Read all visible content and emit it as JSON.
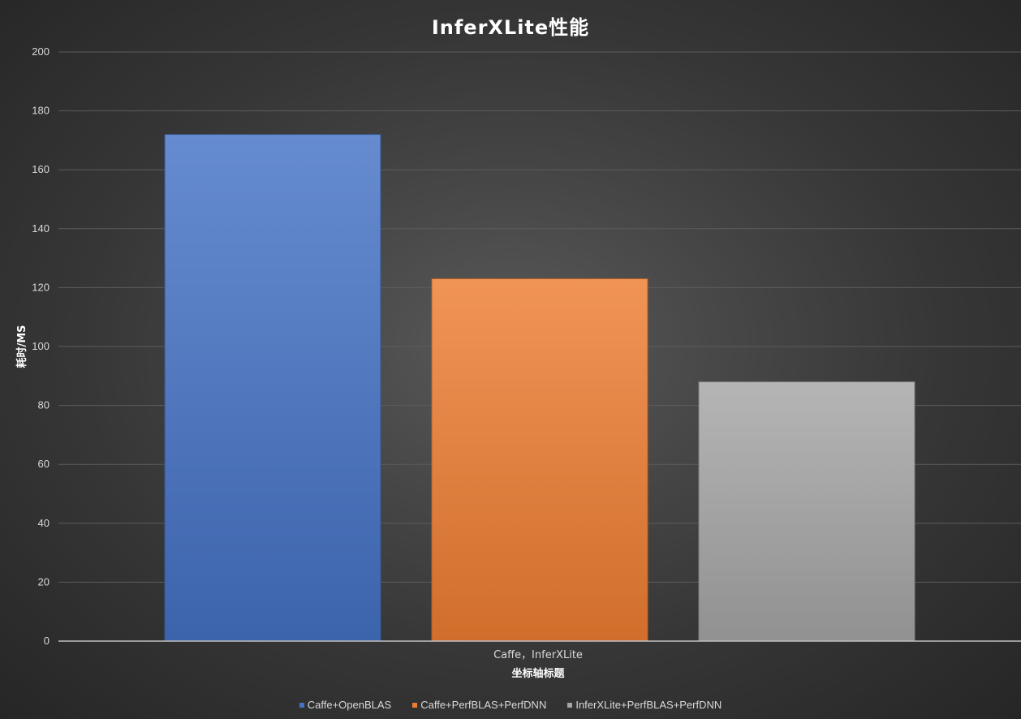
{
  "chart_data": {
    "type": "bar",
    "title": "InferXLite性能",
    "xlabel": "坐标轴标题",
    "ylabel": "耗时/MS",
    "categories": [
      "Caffe，InferXLite"
    ],
    "series": [
      {
        "name": "Caffe+OpenBLAS",
        "values": [
          172
        ],
        "color": "#4472c4"
      },
      {
        "name": "Caffe+PerfBLAS+PerfDNN",
        "values": [
          123
        ],
        "color": "#ed7d31"
      },
      {
        "name": "InferXLite+PerfBLAS+PerfDNN",
        "values": [
          88
        ],
        "color": "#a5a5a5"
      }
    ],
    "ylim": [
      0,
      200
    ],
    "yticks": [
      0,
      20,
      40,
      60,
      80,
      100,
      120,
      140,
      160,
      180,
      200
    ],
    "grid": true,
    "legend_position": "bottom"
  }
}
